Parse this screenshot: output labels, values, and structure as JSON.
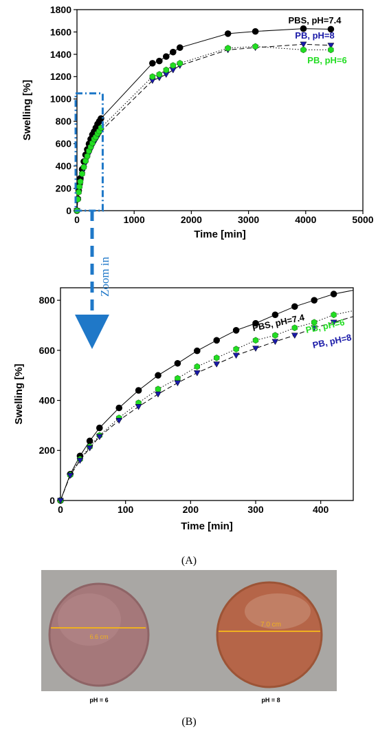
{
  "figure": {
    "panel_a_label": "(A)",
    "panel_b_label": "(B)",
    "zoom_label": "Zoom in"
  },
  "colors": {
    "pbs": "#000000",
    "pb6": "#22dd22",
    "pb8": "#1a1aa8",
    "zoom": "#1f78c8"
  },
  "chart_data": [
    {
      "type": "line",
      "xlabel": "Time [min]",
      "ylabel": "Swelling [%]",
      "xlim": [
        0,
        5000
      ],
      "ylim": [
        0,
        1800
      ],
      "xticks": [
        0,
        1000,
        2000,
        3000,
        4000,
        5000
      ],
      "yticks": [
        0,
        200,
        400,
        600,
        800,
        1000,
        1200,
        1400,
        1600,
        1800
      ],
      "zoom_box": {
        "x": [
          0,
          450
        ],
        "y": [
          0,
          1050
        ]
      },
      "series": [
        {
          "name": "PBS, pH=7.4",
          "color": "#000000",
          "marker": "circle",
          "line": "solid",
          "x": [
            0,
            15,
            30,
            45,
            60,
            90,
            120,
            150,
            180,
            210,
            240,
            270,
            300,
            330,
            360,
            390,
            420,
            1320,
            1440,
            1560,
            1680,
            1800,
            2640,
            3120,
            3960,
            4440
          ],
          "y": [
            0,
            105,
            178,
            238,
            290,
            370,
            440,
            500,
            548,
            598,
            640,
            680,
            708,
            742,
            775,
            800,
            825,
            1320,
            1340,
            1380,
            1420,
            1460,
            1585,
            1605,
            1630,
            1625
          ]
        },
        {
          "name": "PB, pH=8",
          "color": "#1a1aa8",
          "marker": "triangle-down",
          "line": "dashed",
          "x": [
            0,
            15,
            30,
            45,
            60,
            90,
            120,
            150,
            180,
            210,
            240,
            270,
            300,
            330,
            360,
            390,
            420,
            1320,
            1440,
            1560,
            1680,
            1800,
            2640,
            3120,
            3960,
            4440
          ],
          "y": [
            0,
            100,
            160,
            210,
            255,
            320,
            375,
            425,
            470,
            510,
            545,
            580,
            608,
            635,
            660,
            690,
            712,
            1165,
            1190,
            1220,
            1260,
            1300,
            1440,
            1460,
            1490,
            1480
          ]
        },
        {
          "name": "PB, pH=6",
          "color": "#22dd22",
          "marker": "hexagon",
          "line": "dotted",
          "x": [
            0,
            15,
            30,
            45,
            60,
            90,
            120,
            150,
            180,
            210,
            240,
            270,
            300,
            330,
            360,
            390,
            420,
            1320,
            1440,
            1560,
            1680,
            1800,
            2640,
            3120,
            3960,
            4440
          ],
          "y": [
            0,
            102,
            165,
            215,
            260,
            330,
            390,
            445,
            488,
            535,
            570,
            605,
            640,
            660,
            690,
            712,
            742,
            1200,
            1220,
            1260,
            1300,
            1320,
            1455,
            1470,
            1440,
            1440
          ]
        }
      ]
    },
    {
      "type": "line",
      "xlabel": "Time [min]",
      "ylabel": "Swelling [%]",
      "xlim": [
        0,
        450
      ],
      "ylim": [
        0,
        850
      ],
      "xticks": [
        0,
        100,
        200,
        300,
        400
      ],
      "yticks": [
        0,
        200,
        400,
        600,
        800
      ],
      "series": [
        {
          "name": "PBS, pH=7.4",
          "color": "#000000",
          "marker": "circle",
          "line": "solid",
          "x": [
            0,
            15,
            30,
            45,
            60,
            90,
            120,
            150,
            180,
            210,
            240,
            270,
            300,
            330,
            360,
            390,
            420
          ],
          "y": [
            0,
            105,
            178,
            238,
            290,
            370,
            440,
            500,
            548,
            598,
            640,
            680,
            708,
            742,
            775,
            800,
            825
          ],
          "fit_end": [
            450,
            840
          ]
        },
        {
          "name": "PB, pH=6",
          "color": "#22dd22",
          "marker": "hexagon",
          "line": "dotted",
          "x": [
            0,
            15,
            30,
            45,
            60,
            90,
            120,
            150,
            180,
            210,
            240,
            270,
            300,
            330,
            360,
            390,
            420
          ],
          "y": [
            0,
            102,
            165,
            215,
            260,
            330,
            390,
            445,
            488,
            535,
            570,
            605,
            640,
            660,
            690,
            712,
            742
          ],
          "fit_end": [
            450,
            758
          ]
        },
        {
          "name": "PB, pH=8",
          "color": "#1a1aa8",
          "marker": "triangle-down",
          "line": "dashed",
          "x": [
            0,
            15,
            30,
            45,
            60,
            90,
            120,
            150,
            180,
            210,
            240,
            270,
            300,
            330,
            360,
            390,
            420
          ],
          "y": [
            0,
            100,
            160,
            210,
            255,
            320,
            375,
            425,
            470,
            510,
            545,
            580,
            608,
            635,
            660,
            690,
            712
          ],
          "fit_end": [
            450,
            735
          ]
        }
      ]
    }
  ],
  "photo": {
    "left_sample": {
      "measurement": "6.6 cm",
      "label": "pH = 6",
      "color": "#a5787a"
    },
    "right_sample": {
      "measurement": "7.0 cm",
      "label": "pH = 8",
      "color": "#b56548"
    },
    "background": "#a9a7a4",
    "measure_color": "#f0b020"
  }
}
